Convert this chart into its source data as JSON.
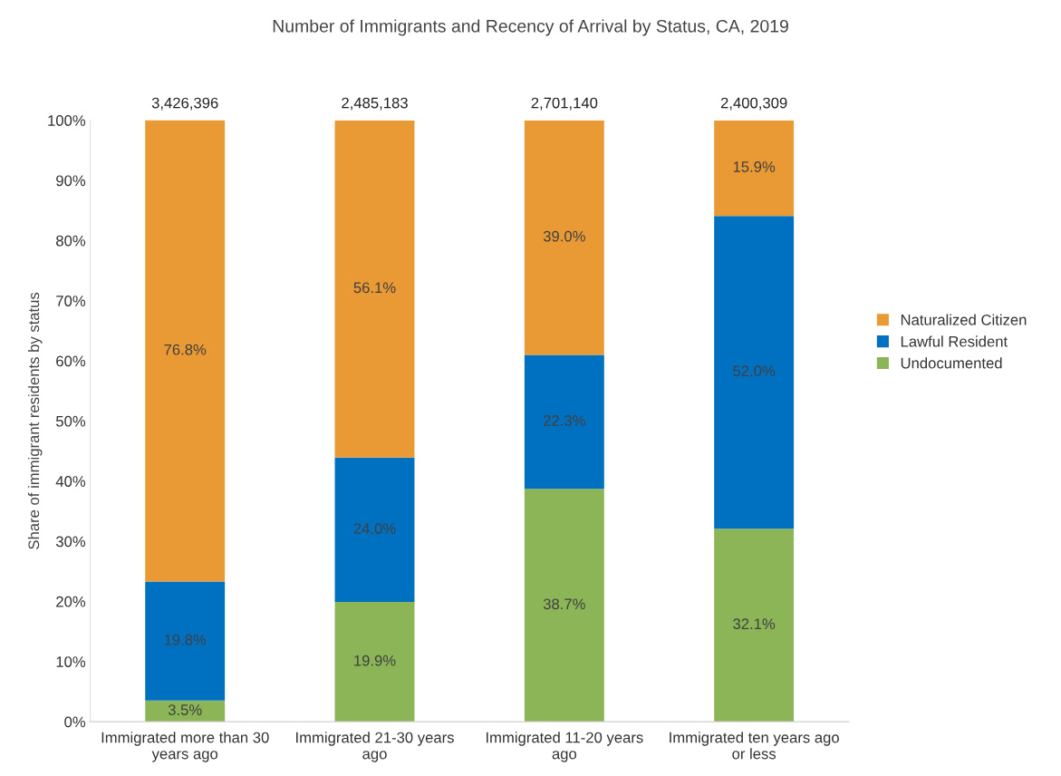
{
  "chart_data": {
    "type": "bar",
    "title": "Number of Immigrants and Recency of Arrival by Status, CA, 2019",
    "ylabel": "Share of immigrant residents by status",
    "categories": [
      "Immigrated more than 30 years ago",
      "Immigrated 21-30 years ago",
      "Immigrated 11-20 years ago",
      "Immigrated ten years ago or less"
    ],
    "stacked": true,
    "series": [
      {
        "name": "Undocumented",
        "color": "#8bb556",
        "values": [
          3.5,
          19.9,
          38.7,
          32.1
        ],
        "value_labels": [
          "3.5%",
          "19.9%",
          "38.7%",
          "32.1%"
        ]
      },
      {
        "name": "Lawful Resident",
        "color": "#0070c0",
        "values": [
          19.8,
          24.0,
          22.3,
          52.0
        ],
        "value_labels": [
          "19.8%",
          "24.0%",
          "22.3%",
          "52.0%"
        ]
      },
      {
        "name": "Naturalized Citizen",
        "color": "#e99a35",
        "values": [
          76.8,
          56.1,
          39.0,
          15.9
        ],
        "value_labels": [
          "76.8%",
          "56.1%",
          "39.0%",
          "15.9%"
        ]
      }
    ],
    "annotations": [
      "3,426,396",
      "2,485,183",
      "2,701,140",
      "2,400,309"
    ],
    "ylim": [
      0,
      100
    ],
    "yticks": [
      {
        "value": 0,
        "label": "0%"
      },
      {
        "value": 10,
        "label": "10%"
      },
      {
        "value": 20,
        "label": "20%"
      },
      {
        "value": 30,
        "label": "30%"
      },
      {
        "value": 40,
        "label": "40%"
      },
      {
        "value": 50,
        "label": "50%"
      },
      {
        "value": 60,
        "label": "60%"
      },
      {
        "value": 70,
        "label": "70%"
      },
      {
        "value": 80,
        "label": "80%"
      },
      {
        "value": 90,
        "label": "90%"
      },
      {
        "value": 100,
        "label": "100%"
      }
    ],
    "grid": false,
    "legend": "right"
  }
}
